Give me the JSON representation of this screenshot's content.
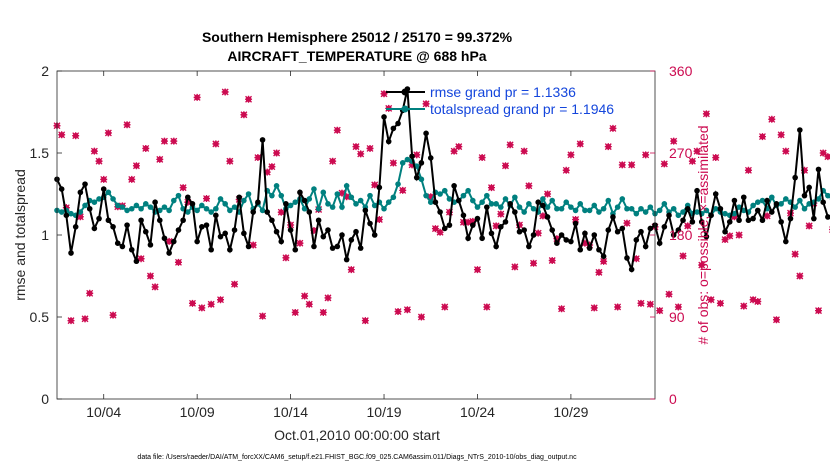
{
  "title_line1": "Southern Hemisphere 25012 / 25170 = 99.372%",
  "title_line2": "AIRCRAFT_TEMPERATURE @ 688 hPa",
  "footer": "data file: /Users/raeder/DAI/ATM_forcXX/CAM6_setup/f.e21.FHIST_BGC.f09_025.CAM6assim.011/Diags_NTrS_2010-10/obs_diag_output.nc",
  "colors": {
    "rmse": "#000000",
    "spread": "#00807f",
    "obs": "#cc0a50",
    "legend_text": "#1446dc"
  },
  "chart_data": {
    "type": "line",
    "xlabel": "Oct.01,2010 00:00:00 start",
    "ylabel": "rmse and totalspread",
    "y2label": "# of obs: o=possible; ×=assimilated",
    "ylim": [
      0,
      2
    ],
    "y2lim": [
      0,
      360
    ],
    "xlim": [
      1.5,
      33.5
    ],
    "xticks": [
      4,
      9,
      14,
      19,
      24,
      29
    ],
    "xticklabels": [
      "10/04",
      "10/09",
      "10/14",
      "10/19",
      "10/24",
      "10/29"
    ],
    "yticks": [
      0,
      0.5,
      1,
      1.5,
      2
    ],
    "yticklabels": [
      "0",
      "0.5",
      "1",
      "1.5",
      "2"
    ],
    "y2ticks": [
      0,
      90,
      180,
      270,
      360
    ],
    "y2ticklabels": [
      "0",
      "90",
      "180",
      "270",
      "360"
    ],
    "grid": false,
    "legend_position": "top-right",
    "series": [
      {
        "name": "rmse grand pr = 1.1336",
        "axis": "left",
        "x_start": 1.5,
        "x_step": 0.25,
        "values": [
          1.34,
          1.28,
          1.12,
          0.89,
          1.05,
          1.26,
          1.31,
          1.16,
          1.04,
          1.1,
          1.28,
          1.09,
          1.05,
          0.95,
          0.93,
          1.06,
          0.91,
          0.84,
          1.09,
          1.02,
          0.94,
          1.2,
          1.09,
          0.98,
          0.89,
          0.96,
          1.03,
          1.09,
          1.23,
          1.19,
          0.96,
          1.05,
          1.06,
          0.91,
          1.12,
          0.99,
          1.01,
          0.91,
          1.03,
          1.23,
          1.01,
          0.93,
          1.14,
          1.2,
          1.58,
          1.14,
          1.09,
          1.02,
          0.96,
          1.19,
          1.03,
          0.91,
          1.26,
          1.21,
          1.14,
          0.93,
          1.09,
          0.99,
          1.03,
          0.92,
          0.93,
          1.0,
          0.85,
          0.97,
          1.02,
          0.92,
          1.15,
          1.07,
          1.0,
          1.29,
          1.72,
          1.57,
          1.65,
          1.68,
          1.76,
          1.89,
          1.48,
          1.35,
          1.44,
          1.62,
          1.47,
          1.2,
          1.14,
          1.04,
          1.06,
          1.3,
          1.21,
          1.12,
          0.98,
          1.06,
          1.1,
          0.98,
          1.17,
          1.01,
          0.93,
          1.05,
          1.08,
          1.19,
          1.14,
          1.02,
          1.03,
          0.93,
          1.0,
          1.2,
          1.18,
          1.11,
          1.03,
          0.95,
          1.0,
          0.97,
          0.96,
          1.07,
          0.91,
          1.01,
          0.92,
          1.0,
          0.91,
          0.87,
          1.03,
          1.11,
          1.02,
          1.04,
          0.86,
          0.79,
          0.97,
          1.02,
          0.93,
          1.04,
          1.06,
          0.95,
          1.05,
          1.12,
          1.0,
          1.03,
          1.09,
          1.16,
          1.08,
          1.27,
          1.08,
          0.99,
          1.12,
          1.25,
          1.16,
          1.02,
          1.08,
          1.21,
          1.09,
          1.23,
          1.09,
          1.1,
          1.15,
          1.09,
          1.21,
          1.14,
          1.19,
          1.08,
          0.96,
          1.1,
          1.35,
          1.64,
          1.24,
          1.29,
          1.1,
          1.4,
          1.2,
          1.11
        ]
      },
      {
        "name": "totalspread grand pr = 1.1946",
        "axis": "left",
        "x_start": 1.5,
        "x_step": 0.25,
        "values": [
          1.15,
          1.14,
          1.15,
          1.13,
          1.12,
          1.14,
          1.18,
          1.21,
          1.2,
          1.22,
          1.23,
          1.26,
          1.22,
          1.18,
          1.17,
          1.15,
          1.16,
          1.18,
          1.16,
          1.19,
          1.17,
          1.14,
          1.15,
          1.17,
          1.15,
          1.21,
          1.24,
          1.16,
          1.14,
          1.17,
          1.15,
          1.18,
          1.16,
          1.14,
          1.16,
          1.22,
          1.19,
          1.15,
          1.17,
          1.14,
          1.21,
          1.25,
          1.16,
          1.19,
          1.15,
          1.27,
          1.24,
          1.3,
          1.24,
          1.16,
          1.18,
          1.2,
          1.22,
          1.16,
          1.22,
          1.28,
          1.16,
          1.26,
          1.19,
          1.17,
          1.25,
          1.17,
          1.3,
          1.23,
          1.19,
          1.21,
          1.17,
          1.24,
          1.18,
          1.2,
          1.16,
          1.2,
          1.23,
          1.31,
          1.44,
          1.46,
          1.45,
          1.42,
          1.34,
          1.24,
          1.2,
          1.26,
          1.25,
          1.27,
          1.22,
          1.2,
          1.21,
          1.24,
          1.27,
          1.21,
          1.17,
          1.2,
          1.24,
          1.19,
          1.19,
          1.17,
          1.22,
          1.18,
          1.23,
          1.17,
          1.14,
          1.19,
          1.16,
          1.14,
          1.22,
          1.17,
          1.21,
          1.16,
          1.16,
          1.2,
          1.17,
          1.15,
          1.19,
          1.15,
          1.15,
          1.18,
          1.14,
          1.16,
          1.21,
          1.13,
          1.17,
          1.22,
          1.16,
          1.16,
          1.13,
          1.16,
          1.14,
          1.17,
          1.13,
          1.15,
          1.19,
          1.14,
          1.16,
          1.12,
          1.14,
          1.18,
          1.13,
          1.14,
          1.13,
          1.15,
          1.12,
          1.16,
          1.14,
          1.13,
          1.12,
          1.13,
          1.17,
          1.15,
          1.14,
          1.18,
          1.2,
          1.21,
          1.16,
          1.23,
          1.18,
          1.19,
          1.22,
          1.2,
          1.17,
          1.21,
          1.16,
          1.19,
          1.2,
          1.22,
          1.27,
          1.24,
          1.22,
          1.27
        ]
      },
      {
        "name": "# of obs (possible / assimilated)",
        "axis": "right",
        "x_start": 1.5,
        "x_step": 0.25,
        "values": [
          300,
          290,
          210,
          86,
          289,
          200,
          88,
          116,
          272,
          261,
          241,
          292,
          92,
          211,
          212,
          301,
          241,
          256,
          154,
          275,
          135,
          123,
          263,
          283,
          173,
          283,
          150,
          232,
          216,
          105,
          331,
          100,
          220,
          104,
          280,
          109,
          337,
          261,
          126,
          219,
          312,
          329,
          169,
          265,
          91,
          249,
          255,
          270,
          205,
          155,
          191,
          95,
          171,
          113,
          104,
          185,
          208,
          95,
          111,
          261,
          295,
          226,
          222,
          142,
          277,
          269,
          86,
          275,
          235,
          197,
          335,
          319,
          259,
          96,
          229,
          98,
          257,
          268,
          90,
          324,
          222,
          187,
          183,
          101,
          205,
          272,
          277,
          194,
          194,
          195,
          142,
          265,
          101,
          232,
          190,
          203,
          256,
          279,
          145,
          191,
          272,
          234,
          149,
          182,
          201,
          225,
          152,
          176,
          99,
          251,
          268,
          197,
          280,
          171,
          169,
          100,
          139,
          151,
          277,
          297,
          101,
          257,
          193,
          257,
          154,
          105,
          268,
          104,
          189,
          97,
          258,
          115,
          283,
          101,
          157,
          190,
          261,
          272,
          147,
          313,
          109,
          265,
          105,
          175,
          179,
          200,
          180,
          102,
          251,
          109,
          107,
          288,
          201,
          307,
          87,
          290,
          272,
          204,
          159,
          135,
          251,
          190,
          215,
          97,
          270,
          266,
          186,
          91,
          210,
          189
        ]
      }
    ]
  }
}
